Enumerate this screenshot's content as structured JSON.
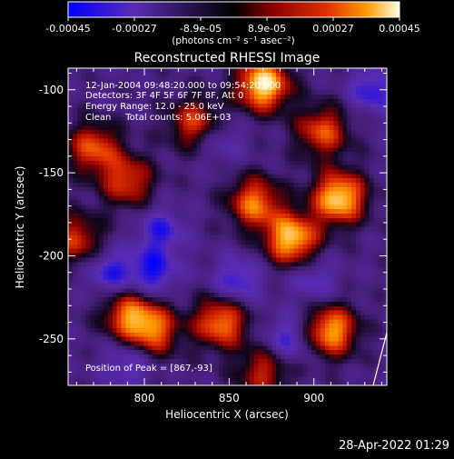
{
  "colorbar": {
    "ticks": [
      "-0.00045",
      "-0.00027",
      "-8.9e-05",
      "8.9e-05",
      "0.00027",
      "0.00045"
    ],
    "unit": "(photons cm⁻² s⁻¹ asec⁻²)"
  },
  "chart_data": {
    "type": "heatmap",
    "title": "Reconstructed RHESSI Image",
    "xlabel": "Heliocentric X (arcsec)",
    "ylabel": "Heliocentric Y (arcsec)",
    "xlim": [
      755,
      943
    ],
    "ylim": [
      -278,
      -87
    ],
    "xticks": [
      800,
      850,
      900
    ],
    "yticks": [
      -100,
      -150,
      -200,
      -250
    ],
    "xtick_labels": [
      "800",
      "850",
      "900"
    ],
    "ytick_labels": [
      "-100",
      "-150",
      "-200",
      "-250"
    ],
    "value_range": [
      -0.00045,
      0.00045
    ],
    "colormap": [
      "#0000ff",
      "#5a2bb4",
      "#2a1650",
      "#000000",
      "#8b0000",
      "#e03000",
      "#ff9a00",
      "#ffffe0"
    ],
    "peak": [
      867,
      -93
    ],
    "bright_regions": [
      {
        "x": 870,
        "y": -97,
        "level": 0.95
      },
      {
        "x": 915,
        "y": -165,
        "level": 0.9
      },
      {
        "x": 887,
        "y": -190,
        "level": 0.85
      },
      {
        "x": 865,
        "y": -168,
        "level": 0.6
      },
      {
        "x": 845,
        "y": -240,
        "level": 0.65
      },
      {
        "x": 770,
        "y": -135,
        "level": 0.5
      },
      {
        "x": 790,
        "y": -155,
        "level": 0.45
      },
      {
        "x": 805,
        "y": -245,
        "level": 0.55
      },
      {
        "x": 790,
        "y": -235,
        "level": 0.5
      },
      {
        "x": 910,
        "y": -245,
        "level": 0.75
      },
      {
        "x": 905,
        "y": -125,
        "level": 0.5
      },
      {
        "x": 830,
        "y": -120,
        "level": 0.45
      },
      {
        "x": 760,
        "y": -190,
        "level": 0.4
      },
      {
        "x": 870,
        "y": -270,
        "level": 0.35
      }
    ],
    "dark_regions": [
      {
        "x": 805,
        "y": -210,
        "level": 0.6
      },
      {
        "x": 780,
        "y": -210,
        "level": 0.55
      },
      {
        "x": 790,
        "y": -265,
        "level": 0.45
      },
      {
        "x": 855,
        "y": -215,
        "level": 0.55
      },
      {
        "x": 885,
        "y": -250,
        "level": 0.5
      },
      {
        "x": 810,
        "y": -185,
        "level": 0.5
      },
      {
        "x": 935,
        "y": -100,
        "level": 0.55
      },
      {
        "x": 845,
        "y": -130,
        "level": 0.35
      },
      {
        "x": 900,
        "y": -215,
        "level": 0.4
      }
    ]
  },
  "annotations": {
    "line1": "12-Jan-2004 09:48:20.000 to 09:54:20.000",
    "line2": "Detectors: 3F 4F 5F 6F 7F 8F, Att 0",
    "line3": "Energy Range: 12.0 - 25.0 keV",
    "line4": "Clean     Total counts: 5.06E+03",
    "peak": "Position of Peak = [867,-93]"
  },
  "footer": {
    "timestamp": "28-Apr-2022 01:29"
  }
}
